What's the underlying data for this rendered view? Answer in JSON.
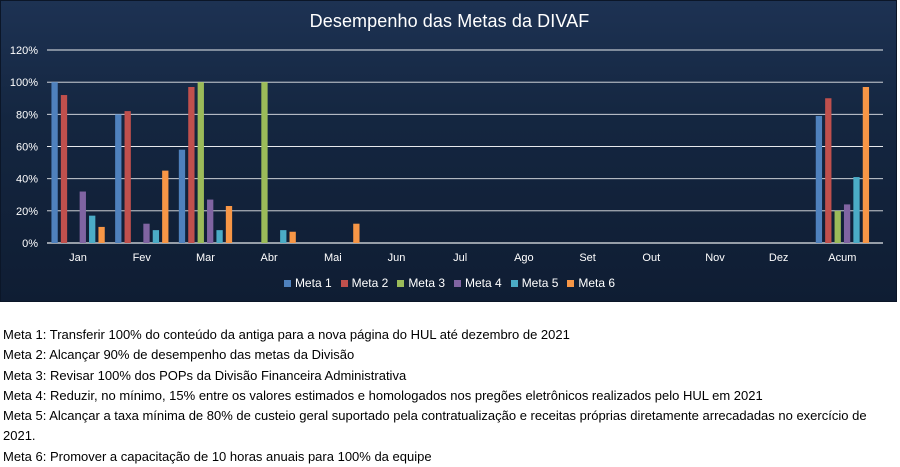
{
  "chart_data": {
    "type": "bar",
    "title": "Desempenho das Metas da DIVAF",
    "categories": [
      "Jan",
      "Fev",
      "Mar",
      "Abr",
      "Mai",
      "Jun",
      "Jul",
      "Ago",
      "Set",
      "Out",
      "Nov",
      "Dez",
      "Acum"
    ],
    "y_ticks": [
      "0%",
      "20%",
      "40%",
      "60%",
      "80%",
      "100%",
      "120%"
    ],
    "ylim": [
      0,
      120
    ],
    "grid": true,
    "legend_position": "bottom",
    "series": [
      {
        "name": "Meta 1",
        "color": "#4f81bd",
        "values": [
          100,
          80,
          58,
          0,
          0,
          0,
          0,
          0,
          0,
          0,
          0,
          0,
          79
        ]
      },
      {
        "name": "Meta 2",
        "color": "#c0504d",
        "values": [
          92,
          82,
          97,
          0,
          0,
          0,
          0,
          0,
          0,
          0,
          0,
          0,
          90
        ]
      },
      {
        "name": "Meta 3",
        "color": "#9bbb59",
        "values": [
          0,
          0,
          100,
          100,
          0,
          0,
          0,
          0,
          0,
          0,
          0,
          0,
          20
        ]
      },
      {
        "name": "Meta 4",
        "color": "#8064a2",
        "values": [
          32,
          12,
          27,
          0,
          0,
          0,
          0,
          0,
          0,
          0,
          0,
          0,
          24
        ]
      },
      {
        "name": "Meta 5",
        "color": "#4bacc6",
        "values": [
          17,
          8,
          8,
          8,
          0,
          0,
          0,
          0,
          0,
          0,
          0,
          0,
          41
        ]
      },
      {
        "name": "Meta 6",
        "color": "#f79646",
        "values": [
          10,
          45,
          23,
          7,
          12,
          0,
          0,
          0,
          0,
          0,
          0,
          0,
          97
        ]
      }
    ]
  },
  "notes": [
    "Meta 1: Transferir 100% do conteúdo da antiga para a nova página do HUL até dezembro de 2021",
    "Meta 2: Alcançar 90% de desempenho das metas da Divisão",
    "Meta 3: Revisar 100% dos POPs da Divisão Financeira Administrativa",
    "Meta 4: Reduzir, no mínimo, 15% entre os valores estimados e homologados nos pregões eletrônicos realizados pelo HUL em 2021",
    "Meta 5: Alcançar a taxa mínima de 80% de custeio geral suportado pela contratualização e receitas próprias diretamente arrecadadas no exercício de 2021.",
    "Meta 6: Promover a capacitação de 10 horas anuais para 100% da equipe"
  ]
}
